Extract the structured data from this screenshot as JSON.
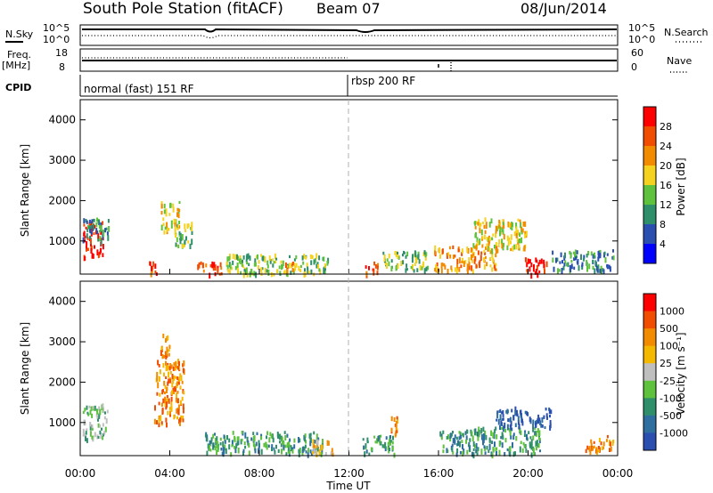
{
  "header": {
    "title": "South Pole Station (fitACF)",
    "beam": "Beam 07",
    "date": "08/Jun/2014"
  },
  "strip_panels": {
    "nsky_label": "N.Sky",
    "nsky_ticks": [
      "10^5",
      "10^0"
    ],
    "nsearch_label": "N.Search",
    "nsearch_ticks": [
      "10^5",
      "10^0"
    ],
    "freq_label_line1": "Freq.",
    "freq_label_line2": "[MHz]",
    "freq_ticks": [
      "18",
      "8"
    ],
    "nave_label": "Nave",
    "nave_ticks": [
      "60",
      "0"
    ],
    "cpid_label": "CPID",
    "cpid_segments": [
      {
        "label": "normal (fast) 151 RF",
        "start_hour": 0
      },
      {
        "label": "rbsp 200 RF",
        "start_hour": 12
      }
    ]
  },
  "chart_data": [
    {
      "type": "heatmap",
      "name": "power",
      "ylabel": "Slant Range [km]",
      "yticks": [
        "1000",
        "2000",
        "3000",
        "4000"
      ],
      "ylim": [
        180,
        4500
      ],
      "xlim": [
        0,
        24
      ],
      "colorbar_label": "Power [dB]",
      "colorbar_ticks": [
        "4",
        "8",
        "12",
        "16",
        "20",
        "24",
        "28"
      ],
      "colorbar_colors": [
        "#0000ff",
        "#2a4fb0",
        "#2f8f6b",
        "#5ec23d",
        "#f5d21e",
        "#f28b00",
        "#f04d00",
        "#ff0000"
      ],
      "regions": [
        {
          "t0": 0.1,
          "t1": 1.0,
          "r0": 600,
          "r1": 1500,
          "level": 7
        },
        {
          "t0": 0.1,
          "t1": 1.3,
          "r0": 1000,
          "r1": 1600,
          "level": 2
        },
        {
          "t0": 2.9,
          "t1": 3.5,
          "r0": 200,
          "r1": 500,
          "level": 6
        },
        {
          "t0": 3.6,
          "t1": 4.4,
          "r0": 1200,
          "r1": 2000,
          "level": 4
        },
        {
          "t0": 4.2,
          "t1": 5.0,
          "r0": 800,
          "r1": 1500,
          "level": 3
        },
        {
          "t0": 5.2,
          "t1": 6.3,
          "r0": 200,
          "r1": 500,
          "level": 6
        },
        {
          "t0": 6.5,
          "t1": 11.2,
          "r0": 200,
          "r1": 700,
          "level": 3
        },
        {
          "t0": 9.0,
          "t1": 9.6,
          "r0": 250,
          "r1": 500,
          "level": 5
        },
        {
          "t0": 12.7,
          "t1": 13.4,
          "r0": 200,
          "r1": 500,
          "level": 6
        },
        {
          "t0": 13.5,
          "t1": 15.5,
          "r0": 300,
          "r1": 800,
          "level": 3
        },
        {
          "t0": 15.8,
          "t1": 18.6,
          "r0": 300,
          "r1": 900,
          "level": 5
        },
        {
          "t0": 17.5,
          "t1": 19.9,
          "r0": 800,
          "r1": 1600,
          "level": 4
        },
        {
          "t0": 19.8,
          "t1": 20.9,
          "r0": 200,
          "r1": 600,
          "level": 7
        },
        {
          "t0": 21.0,
          "t1": 23.8,
          "r0": 300,
          "r1": 800,
          "level": 2
        }
      ]
    },
    {
      "type": "heatmap",
      "name": "velocity",
      "xlabel": "Time UT",
      "ylabel": "Slant Range [km]",
      "yticks": [
        "1000",
        "2000",
        "3000",
        "4000"
      ],
      "ylim": [
        180,
        4500
      ],
      "xlim": [
        0,
        24
      ],
      "xticks": [
        "00:00",
        "04:00",
        "08:00",
        "12:00",
        "16:00",
        "20:00",
        "00:00"
      ],
      "colorbar_label": "Velocity [m s⁻¹]",
      "colorbar_ticks": [
        "1000",
        "500",
        "100",
        "25",
        "-25",
        "-100",
        "-500",
        "-1000"
      ],
      "colorbar_colors": [
        "#2a4fb0",
        "#2f6f9f",
        "#2f8f6b",
        "#5ec23d",
        "#bfbfbf",
        "#f5b800",
        "#f28b00",
        "#f04d00",
        "#ff0000"
      ],
      "regions": [
        {
          "t0": 0.1,
          "t1": 1.2,
          "r0": 600,
          "r1": 1500,
          "level": 3
        },
        {
          "t0": 3.3,
          "t1": 4.6,
          "r0": 1000,
          "r1": 2600,
          "level": 6
        },
        {
          "t0": 3.5,
          "t1": 4.0,
          "r0": 2600,
          "r1": 3200,
          "level": 6
        },
        {
          "t0": 5.5,
          "t1": 10.8,
          "r0": 250,
          "r1": 800,
          "level": 2
        },
        {
          "t0": 10.3,
          "t1": 11.3,
          "r0": 250,
          "r1": 600,
          "level": 5
        },
        {
          "t0": 12.6,
          "t1": 14.0,
          "r0": 250,
          "r1": 700,
          "level": 2
        },
        {
          "t0": 13.8,
          "t1": 14.2,
          "r0": 700,
          "r1": 1200,
          "level": 6
        },
        {
          "t0": 16.0,
          "t1": 20.5,
          "r0": 250,
          "r1": 900,
          "level": 2
        },
        {
          "t0": 18.5,
          "t1": 21.0,
          "r0": 900,
          "r1": 1400,
          "level": 0
        },
        {
          "t0": 22.5,
          "t1": 23.8,
          "r0": 300,
          "r1": 700,
          "level": 6
        }
      ]
    }
  ]
}
